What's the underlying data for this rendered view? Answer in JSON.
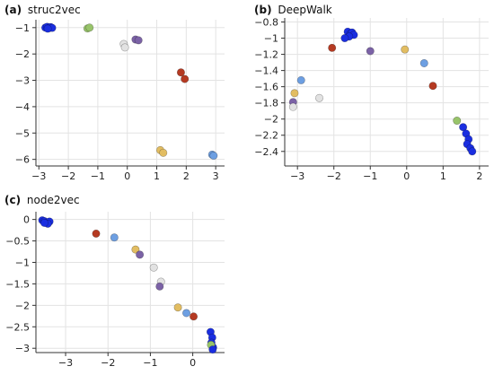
{
  "chart_data": [
    {
      "type": "scatter",
      "panel": "(a)",
      "title": "struc2vec",
      "xlim": [
        -3.1,
        3.3
      ],
      "ylim": [
        -6.25,
        -0.7
      ],
      "xticks": [
        -3,
        -2,
        -1,
        0,
        1,
        2,
        3
      ],
      "yticks": [
        -1,
        -2,
        -3,
        -4,
        -5,
        -6
      ],
      "grid": true,
      "points": [
        {
          "x": -2.78,
          "y": -1.0,
          "color": "blue"
        },
        {
          "x": -2.72,
          "y": -0.97,
          "color": "blue"
        },
        {
          "x": -2.66,
          "y": -1.02,
          "color": "blue"
        },
        {
          "x": -2.6,
          "y": -0.98,
          "color": "blue"
        },
        {
          "x": -2.55,
          "y": -1.01,
          "color": "blue"
        },
        {
          "x": -2.7,
          "y": -1.04,
          "color": "blue"
        },
        {
          "x": -1.35,
          "y": -1.03,
          "color": "green"
        },
        {
          "x": -1.28,
          "y": -1.0,
          "color": "green"
        },
        {
          "x": -0.12,
          "y": -1.62,
          "color": "lightgray"
        },
        {
          "x": -0.08,
          "y": -1.75,
          "color": "lightgray"
        },
        {
          "x": 0.28,
          "y": -1.45,
          "color": "purple"
        },
        {
          "x": 0.38,
          "y": -1.48,
          "color": "purple"
        },
        {
          "x": 1.82,
          "y": -2.7,
          "color": "red"
        },
        {
          "x": 1.95,
          "y": -2.95,
          "color": "red"
        },
        {
          "x": 1.12,
          "y": -5.65,
          "color": "gold"
        },
        {
          "x": 1.22,
          "y": -5.75,
          "color": "gold"
        },
        {
          "x": 2.88,
          "y": -5.82,
          "color": "lightblue"
        },
        {
          "x": 2.93,
          "y": -5.86,
          "color": "lightblue"
        }
      ]
    },
    {
      "type": "scatter",
      "panel": "(b)",
      "title": "DeepWalk",
      "xlim": [
        -3.35,
        2.25
      ],
      "ylim": [
        -2.58,
        -0.75
      ],
      "xticks": [
        -3,
        -2,
        -1,
        0,
        1,
        2
      ],
      "yticks": [
        -0.8,
        -1.0,
        -1.2,
        -1.4,
        -1.6,
        -1.8,
        -2.0,
        -2.2,
        -2.4
      ],
      "grid": true,
      "points": [
        {
          "x": -1.62,
          "y": -0.92,
          "color": "blue"
        },
        {
          "x": -1.55,
          "y": -0.95,
          "color": "blue"
        },
        {
          "x": -1.5,
          "y": -0.93,
          "color": "blue"
        },
        {
          "x": -1.45,
          "y": -0.96,
          "color": "blue"
        },
        {
          "x": -1.58,
          "y": -0.98,
          "color": "blue"
        },
        {
          "x": -1.7,
          "y": -1.0,
          "color": "blue"
        },
        {
          "x": -2.05,
          "y": -1.12,
          "color": "red"
        },
        {
          "x": -1.0,
          "y": -1.16,
          "color": "purple"
        },
        {
          "x": -0.05,
          "y": -1.14,
          "color": "gold"
        },
        {
          "x": 0.48,
          "y": -1.31,
          "color": "lightblue"
        },
        {
          "x": 0.72,
          "y": -1.59,
          "color": "red"
        },
        {
          "x": -2.9,
          "y": -1.52,
          "color": "lightblue"
        },
        {
          "x": -3.08,
          "y": -1.68,
          "color": "gold"
        },
        {
          "x": -2.4,
          "y": -1.74,
          "color": "lightgray"
        },
        {
          "x": -3.12,
          "y": -1.79,
          "color": "purple"
        },
        {
          "x": -3.12,
          "y": -1.85,
          "color": "lightgray"
        },
        {
          "x": 1.38,
          "y": -2.02,
          "color": "green"
        },
        {
          "x": 1.55,
          "y": -2.1,
          "color": "blue"
        },
        {
          "x": 1.63,
          "y": -2.18,
          "color": "blue"
        },
        {
          "x": 1.7,
          "y": -2.25,
          "color": "blue"
        },
        {
          "x": 1.66,
          "y": -2.31,
          "color": "blue"
        },
        {
          "x": 1.75,
          "y": -2.36,
          "color": "blue"
        },
        {
          "x": 1.8,
          "y": -2.4,
          "color": "blue"
        }
      ]
    },
    {
      "type": "scatter",
      "panel": "(c)",
      "title": "node2vec",
      "xlim": [
        -3.7,
        0.75
      ],
      "ylim": [
        -3.1,
        0.18
      ],
      "xticks": [
        -3,
        -2,
        -1,
        0
      ],
      "yticks": [
        0,
        -0.5,
        -1.0,
        -1.5,
        -2.0,
        -2.5,
        -3.0
      ],
      "grid": true,
      "points": [
        {
          "x": -3.55,
          "y": -0.02,
          "color": "blue"
        },
        {
          "x": -3.5,
          "y": -0.04,
          "color": "blue"
        },
        {
          "x": -3.45,
          "y": -0.07,
          "color": "blue"
        },
        {
          "x": -3.38,
          "y": -0.05,
          "color": "blue"
        },
        {
          "x": -3.42,
          "y": -0.1,
          "color": "blue"
        },
        {
          "x": -3.5,
          "y": -0.08,
          "color": "blue"
        },
        {
          "x": -2.28,
          "y": -0.33,
          "color": "red"
        },
        {
          "x": -1.85,
          "y": -0.42,
          "color": "lightblue"
        },
        {
          "x": -1.35,
          "y": -0.7,
          "color": "gold"
        },
        {
          "x": -1.25,
          "y": -0.82,
          "color": "purple"
        },
        {
          "x": -0.92,
          "y": -1.12,
          "color": "lightgray"
        },
        {
          "x": -0.75,
          "y": -1.45,
          "color": "lightgray"
        },
        {
          "x": -0.78,
          "y": -1.56,
          "color": "purple"
        },
        {
          "x": -0.35,
          "y": -2.05,
          "color": "gold"
        },
        {
          "x": -0.15,
          "y": -2.18,
          "color": "lightblue"
        },
        {
          "x": 0.02,
          "y": -2.26,
          "color": "red"
        },
        {
          "x": 0.42,
          "y": -2.62,
          "color": "blue"
        },
        {
          "x": 0.46,
          "y": -2.75,
          "color": "blue"
        },
        {
          "x": 0.44,
          "y": -2.87,
          "color": "blue"
        },
        {
          "x": 0.48,
          "y": -2.98,
          "color": "blue"
        },
        {
          "x": 0.43,
          "y": -2.92,
          "color": "green"
        },
        {
          "x": 0.47,
          "y": -3.03,
          "color": "blue"
        }
      ]
    }
  ],
  "colors": {
    "blue": "#1a2ee0",
    "green": "#98c46a",
    "lightgray": "#e2e2e2",
    "purple": "#7b62a6",
    "red": "#b53a22",
    "gold": "#e2bd62",
    "lightblue": "#6d9fe2"
  }
}
